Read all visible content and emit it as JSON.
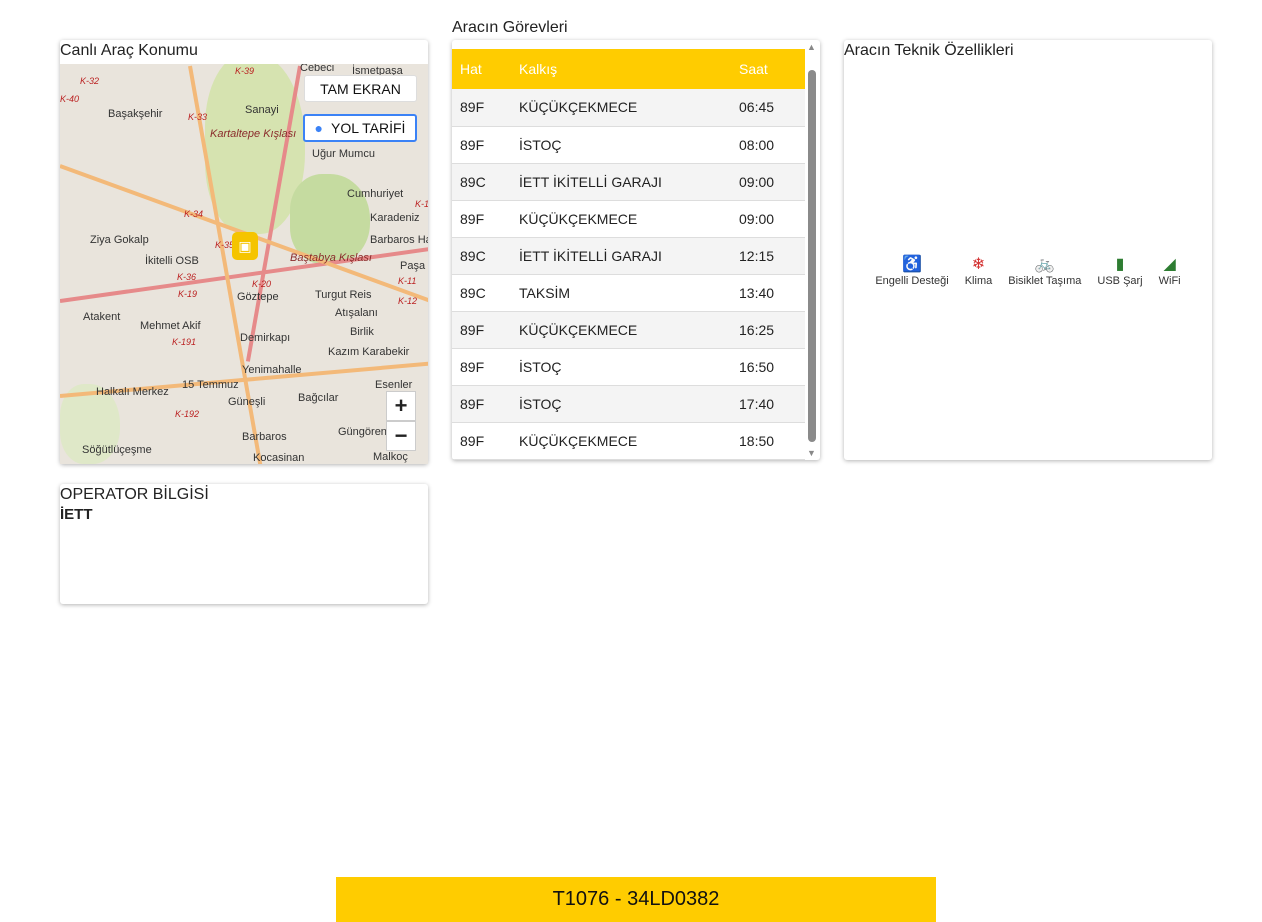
{
  "map_card": {
    "title": "Canlı Araç Konumu",
    "fullscreen_label": "TAM EKRAN",
    "directions_label": "YOL TARİFİ",
    "zoom_in": "+",
    "zoom_out": "−",
    "labels": [
      "Başakşehir",
      "Kartaltepe Kışlası",
      "Uğur Mumcu",
      "Cumhuriyet",
      "Karadeniz",
      "Baştabya Kışlası",
      "Barbaros Hayrettin",
      "Ziya Gokalp",
      "İkitelli OSB",
      "Göztepe",
      "Turgut Reis",
      "Atışalanı",
      "Atakent",
      "Mehmet Akif",
      "Demirkapı",
      "Birlik",
      "Kazım Karabekir",
      "15 Temmuz",
      "Yenimahalle",
      "Esenler",
      "Halkalı Merkez",
      "Güneşli",
      "Bağcılar",
      "Barbaros",
      "Güngören",
      "Söğütlüçeşme",
      "Kocasinan",
      "Malkoç",
      "Cebeci",
      "İsmetpaşa",
      "Sanayi",
      "Paşa"
    ],
    "road_labels": [
      "K-32",
      "K-39",
      "K-40",
      "K-33",
      "K-34",
      "K-35",
      "K-36",
      "K-19",
      "K-20",
      "K-191",
      "K-192",
      "K-12",
      "K-11",
      "K-1"
    ]
  },
  "tasks_card": {
    "title": "Aracın Görevleri",
    "columns": [
      "Hat",
      "Kalkış",
      "Saat"
    ],
    "rows": [
      [
        "89F",
        "KÜÇÜKÇEKMECE",
        "06:45"
      ],
      [
        "89F",
        "İSTOÇ",
        "08:00"
      ],
      [
        "89C",
        "İETT İKİTELLİ GARAJI",
        "09:00"
      ],
      [
        "89F",
        "KÜÇÜKÇEKMECE",
        "09:00"
      ],
      [
        "89C",
        "İETT İKİTELLİ GARAJI",
        "12:15"
      ],
      [
        "89C",
        "TAKSİM",
        "13:40"
      ],
      [
        "89F",
        "KÜÇÜKÇEKMECE",
        "16:25"
      ],
      [
        "89F",
        "İSTOÇ",
        "16:50"
      ],
      [
        "89F",
        "İSTOÇ",
        "17:40"
      ],
      [
        "89F",
        "KÜÇÜKÇEKMECE",
        "18:50"
      ]
    ]
  },
  "features_card": {
    "title": "Aracın Teknik Özellikleri",
    "items": [
      {
        "label": "Engelli Desteği",
        "icon": "wheelchair-icon",
        "color": "#d32f2f"
      },
      {
        "label": "Klima",
        "icon": "snowflake-icon",
        "color": "#d32f2f"
      },
      {
        "label": "Bisiklet Taşıma",
        "icon": "bicycle-icon",
        "color": "#d32f2f"
      },
      {
        "label": "USB Şarj",
        "icon": "battery-icon",
        "color": "#2e7d32"
      },
      {
        "label": "WiFi",
        "icon": "wifi-icon",
        "color": "#2e7d32"
      }
    ]
  },
  "operator_card": {
    "title": "OPERATOR BİLGİSİ",
    "name": "İETT"
  },
  "footer": {
    "vehicle": "T1076 - 34LD0382"
  },
  "colors": {
    "accent": "#ffcc00"
  }
}
